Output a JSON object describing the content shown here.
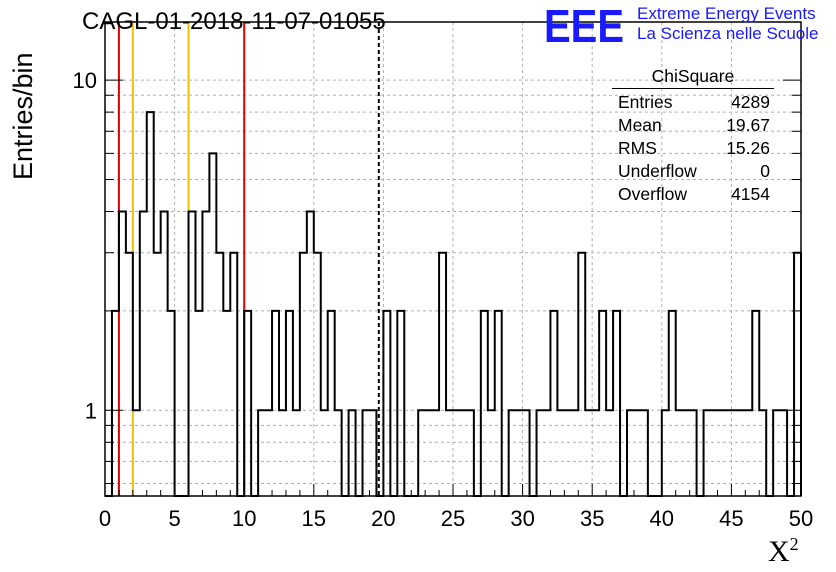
{
  "title": "CAGL-01-2018-11-07-01055",
  "logo": {
    "mark": "EEE",
    "line1": "Extreme Energy Events",
    "line2": "La Scienza nelle Scuole",
    "color": "#1a1aff"
  },
  "stats": {
    "title": "ChiSquare",
    "rows": [
      {
        "label": "Entries",
        "value": "4289"
      },
      {
        "label": "Mean",
        "value": "19.67"
      },
      {
        "label": "RMS",
        "value": "15.26"
      },
      {
        "label": "Underflow",
        "value": "0"
      },
      {
        "label": "Overflow",
        "value": "4154"
      }
    ]
  },
  "chart_data": {
    "type": "histogram",
    "title": "CAGL-01-2018-11-07-01055",
    "xlabel": "X²",
    "xlabel_base": "X",
    "xlabel_sup": "2",
    "ylabel": "Entries/bin",
    "x_scale": "linear",
    "y_scale": "log",
    "xlim": [
      0,
      50
    ],
    "ylim": [
      0.55,
      15
    ],
    "x_ticks": [
      0,
      5,
      10,
      15,
      20,
      25,
      30,
      35,
      40,
      45,
      50
    ],
    "y_tick_labels": [
      1,
      10
    ],
    "grid": true,
    "bin_width": 0.5,
    "counts": [
      0,
      2,
      4,
      3,
      1,
      4,
      8,
      3,
      4,
      2,
      0,
      0,
      4,
      2,
      4,
      6,
      3,
      2,
      3,
      0,
      2,
      0,
      1,
      1,
      2,
      1,
      2,
      1,
      3,
      4,
      3,
      1,
      2,
      1,
      0,
      1,
      0,
      1,
      1,
      0,
      2,
      0,
      2,
      0,
      0,
      1,
      1,
      1,
      3,
      1,
      1,
      1,
      1,
      0,
      2,
      1,
      2,
      0,
      1,
      1,
      1,
      0,
      1,
      1,
      2,
      1,
      1,
      1,
      3,
      1,
      1,
      2,
      1,
      2,
      0,
      1,
      1,
      1,
      0,
      0,
      1,
      2,
      1,
      1,
      1,
      0,
      1,
      1,
      1,
      1,
      1,
      1,
      1,
      2,
      1,
      0,
      1,
      1,
      0,
      3
    ],
    "reference_lines": [
      {
        "x": 1.0,
        "color": "#e00000",
        "style": "solid"
      },
      {
        "x": 2.0,
        "color": "#f0c000",
        "style": "solid"
      },
      {
        "x": 6.0,
        "color": "#f0c000",
        "style": "solid"
      },
      {
        "x": 10.0,
        "color": "#e00000",
        "style": "solid"
      },
      {
        "x": 19.67,
        "color": "#000000",
        "style": "dashed"
      }
    ],
    "line_color": "#000000"
  }
}
